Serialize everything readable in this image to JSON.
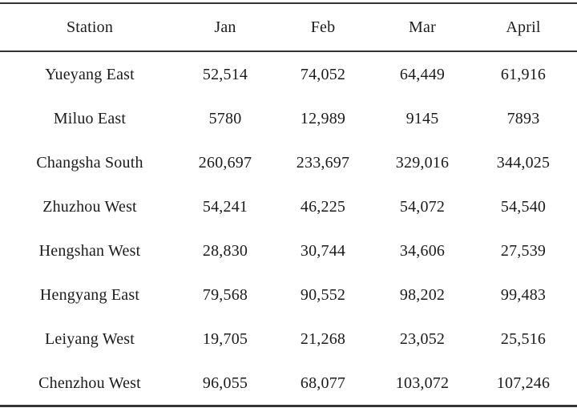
{
  "table": {
    "columns": [
      "Station",
      "Jan",
      "Feb",
      "Mar",
      "April"
    ],
    "rows": [
      {
        "station": "Yueyang East",
        "values": [
          "52,514",
          "74,052",
          "64,449",
          "61,916"
        ]
      },
      {
        "station": "Miluo East",
        "values": [
          "5780",
          "12,989",
          "9145",
          "7893"
        ]
      },
      {
        "station": "Changsha South",
        "values": [
          "260,697",
          "233,697",
          "329,016",
          "344,025"
        ]
      },
      {
        "station": "Zhuzhou West",
        "values": [
          "54,241",
          "46,225",
          "54,072",
          "54,540"
        ]
      },
      {
        "station": "Hengshan West",
        "values": [
          "28,830",
          "30,744",
          "34,606",
          "27,539"
        ]
      },
      {
        "station": "Hengyang East",
        "values": [
          "79,568",
          "90,552",
          "98,202",
          "99,483"
        ]
      },
      {
        "station": "Leiyang West",
        "values": [
          "19,705",
          "21,268",
          "23,052",
          "25,516"
        ]
      },
      {
        "station": "Chenzhou West",
        "values": [
          "96,055",
          "68,077",
          "103,072",
          "107,246"
        ]
      }
    ]
  },
  "chart_data": {
    "type": "table",
    "categories": [
      "Jan",
      "Feb",
      "Mar",
      "April"
    ],
    "series": [
      {
        "name": "Yueyang East",
        "values": [
          52514,
          74052,
          64449,
          61916
        ]
      },
      {
        "name": "Miluo East",
        "values": [
          5780,
          12989,
          9145,
          7893
        ]
      },
      {
        "name": "Changsha South",
        "values": [
          260697,
          233697,
          329016,
          344025
        ]
      },
      {
        "name": "Zhuzhou West",
        "values": [
          54241,
          46225,
          54072,
          54540
        ]
      },
      {
        "name": "Hengshan West",
        "values": [
          28830,
          30744,
          34606,
          27539
        ]
      },
      {
        "name": "Hengyang East",
        "values": [
          79568,
          90552,
          98202,
          99483
        ]
      },
      {
        "name": "Leiyang West",
        "values": [
          19705,
          21268,
          23052,
          25516
        ]
      },
      {
        "name": "Chenzhou West",
        "values": [
          96055,
          68077,
          103072,
          107246
        ]
      }
    ]
  },
  "colors": {
    "text": "#1b1b1b",
    "rule": "#333333",
    "background": "#ffffff"
  }
}
